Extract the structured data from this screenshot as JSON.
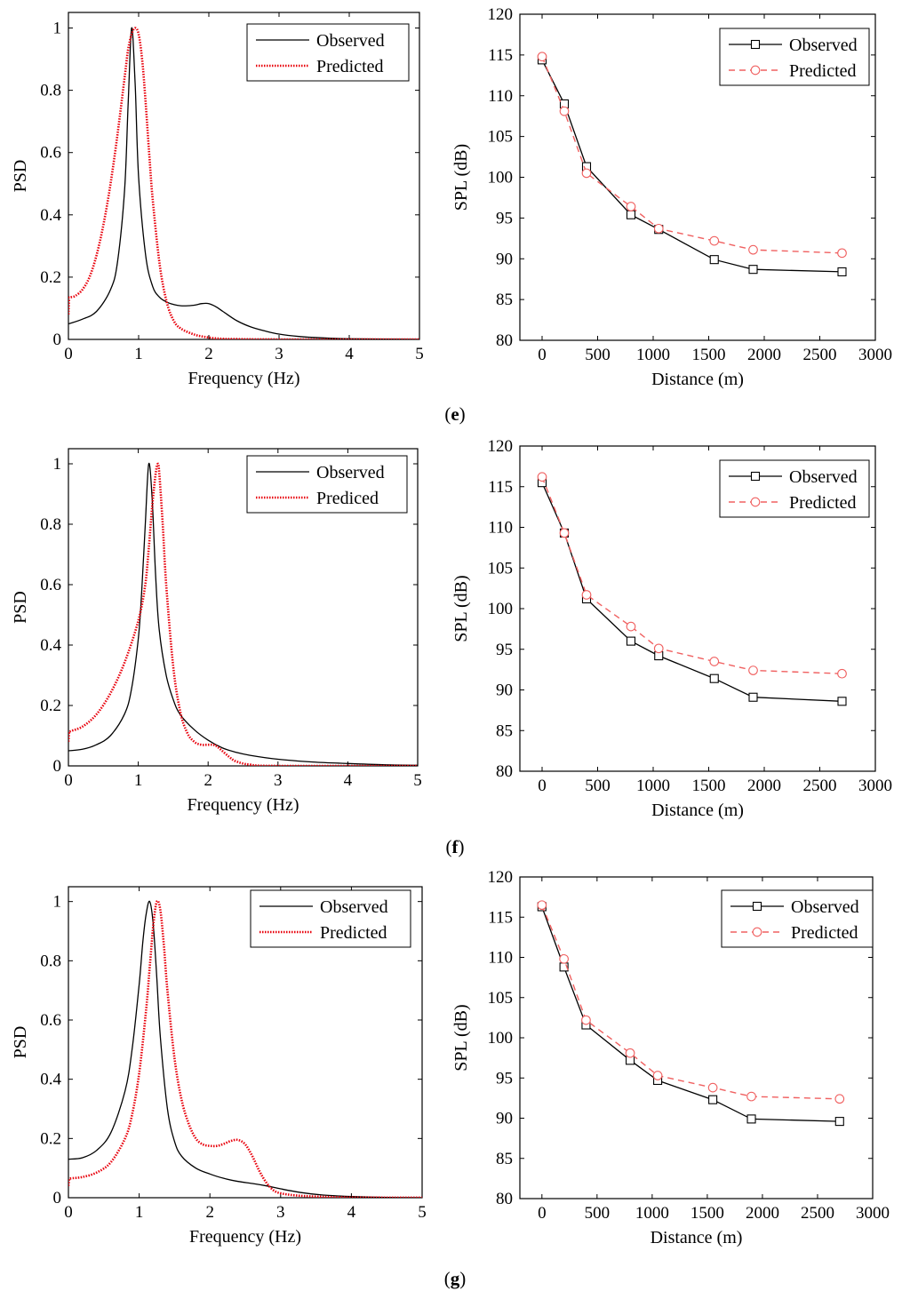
{
  "panel_labels": [
    "(e)",
    "(f)",
    "(g)"
  ],
  "chart_data": [
    {
      "panel": "(e)",
      "type": "line",
      "xlabel": "Frequency (Hz)",
      "ylabel": "PSD",
      "xlim": [
        0,
        5
      ],
      "ylim": [
        0,
        1.05
      ],
      "xticks": [
        0,
        1,
        2,
        3,
        4,
        5
      ],
      "yticks": [
        0,
        0.2,
        0.4,
        0.6,
        0.8,
        1
      ],
      "legend_position": "top-right",
      "grid": false,
      "series": [
        {
          "name": "Observed",
          "color": "#000000",
          "style": "solid",
          "x": [
            0,
            0.2,
            0.4,
            0.6,
            0.7,
            0.8,
            0.85,
            0.9,
            0.95,
            1.0,
            1.1,
            1.2,
            1.3,
            1.4,
            1.5,
            1.6,
            1.7,
            1.8,
            1.9,
            2.0,
            2.1,
            2.2,
            2.4,
            2.6,
            2.8,
            3.0,
            3.3,
            3.6,
            4.0,
            4.5,
            5.0
          ],
          "y": [
            0.05,
            0.065,
            0.09,
            0.16,
            0.25,
            0.48,
            0.75,
            1.0,
            0.82,
            0.52,
            0.27,
            0.17,
            0.135,
            0.12,
            0.112,
            0.108,
            0.108,
            0.11,
            0.115,
            0.115,
            0.105,
            0.09,
            0.06,
            0.04,
            0.027,
            0.017,
            0.009,
            0.005,
            0.002,
            0.001,
            0.0
          ]
        },
        {
          "name": "Predicted",
          "color": "#e8000b",
          "style": "dotted",
          "x": [
            0,
            0.01,
            0.03,
            0.1,
            0.2,
            0.3,
            0.4,
            0.5,
            0.6,
            0.7,
            0.8,
            0.85,
            0.9,
            0.95,
            1.0,
            1.05,
            1.1,
            1.15,
            1.2,
            1.3,
            1.4,
            1.5,
            1.6,
            1.8,
            2.0,
            2.2,
            2.4,
            3.0,
            5.0
          ],
          "y": [
            0.08,
            0.13,
            0.135,
            0.14,
            0.16,
            0.2,
            0.27,
            0.37,
            0.5,
            0.66,
            0.84,
            0.93,
            0.98,
            1.0,
            0.98,
            0.9,
            0.76,
            0.6,
            0.45,
            0.24,
            0.12,
            0.06,
            0.035,
            0.015,
            0.006,
            0.002,
            0.001,
            0.0,
            0.0
          ]
        }
      ]
    },
    {
      "panel": "(e)",
      "type": "line",
      "xlabel": "Distance (m)",
      "ylabel": "SPL (dB)",
      "xlim": [
        -200,
        3000
      ],
      "ylim": [
        80,
        120
      ],
      "xticks": [
        0,
        500,
        1000,
        1500,
        2000,
        2500,
        3000
      ],
      "yticks": [
        80,
        85,
        90,
        95,
        100,
        105,
        110,
        115,
        120
      ],
      "legend_position": "top-right",
      "grid": false,
      "series": [
        {
          "name": "Observed",
          "color": "#000000",
          "style": "solid",
          "marker": "square",
          "x": [
            0,
            200,
            400,
            800,
            1050,
            1550,
            1900,
            2700
          ],
          "y": [
            114.4,
            109.0,
            101.3,
            95.4,
            93.6,
            89.9,
            88.7,
            88.4
          ]
        },
        {
          "name": "Predicted",
          "color": "#f06060",
          "style": "dashed",
          "marker": "circle",
          "x": [
            0,
            200,
            400,
            800,
            1050,
            1550,
            1900,
            2700
          ],
          "y": [
            114.8,
            108.1,
            100.5,
            96.4,
            93.7,
            92.2,
            91.1,
            90.7
          ]
        }
      ]
    },
    {
      "panel": "(f)",
      "type": "line",
      "xlabel": "Frequency (Hz)",
      "ylabel": "PSD",
      "xlim": [
        0,
        5
      ],
      "ylim": [
        0,
        1.05
      ],
      "xticks": [
        0,
        1,
        2,
        3,
        4,
        5
      ],
      "yticks": [
        0,
        0.2,
        0.4,
        0.6,
        0.8,
        1
      ],
      "legend_position": "top-right",
      "grid": false,
      "series": [
        {
          "name": "Observed",
          "color": "#000000",
          "style": "solid",
          "x": [
            0,
            0.2,
            0.4,
            0.6,
            0.8,
            0.9,
            1.0,
            1.05,
            1.1,
            1.15,
            1.2,
            1.25,
            1.3,
            1.4,
            1.5,
            1.6,
            1.8,
            2.0,
            2.2,
            2.4,
            2.6,
            3.0,
            3.5,
            4.0,
            4.5,
            5.0
          ],
          "y": [
            0.05,
            0.055,
            0.07,
            0.1,
            0.17,
            0.25,
            0.42,
            0.58,
            0.8,
            1.0,
            0.88,
            0.62,
            0.45,
            0.3,
            0.22,
            0.17,
            0.12,
            0.085,
            0.06,
            0.045,
            0.035,
            0.022,
            0.013,
            0.008,
            0.004,
            0.002
          ]
        },
        {
          "name": "Prediced",
          "color": "#e8000b",
          "style": "dotted",
          "x": [
            0,
            0.01,
            0.03,
            0.2,
            0.4,
            0.6,
            0.8,
            1.0,
            1.1,
            1.15,
            1.2,
            1.25,
            1.28,
            1.3,
            1.35,
            1.4,
            1.5,
            1.6,
            1.7,
            1.8,
            1.9,
            2.0,
            2.1,
            2.2,
            2.3,
            2.4,
            2.6,
            3.0,
            5.0
          ],
          "y": [
            0.08,
            0.11,
            0.115,
            0.13,
            0.17,
            0.24,
            0.34,
            0.48,
            0.6,
            0.72,
            0.86,
            0.97,
            1.0,
            0.97,
            0.8,
            0.6,
            0.33,
            0.18,
            0.11,
            0.08,
            0.07,
            0.07,
            0.068,
            0.05,
            0.03,
            0.015,
            0.004,
            0.0,
            0.0
          ]
        }
      ]
    },
    {
      "panel": "(f)",
      "type": "line",
      "xlabel": "Distance (m)",
      "ylabel": "SPL (dB)",
      "xlim": [
        -200,
        3000
      ],
      "ylim": [
        80,
        120
      ],
      "xticks": [
        0,
        500,
        1000,
        1500,
        2000,
        2500,
        3000
      ],
      "yticks": [
        80,
        85,
        90,
        95,
        100,
        105,
        110,
        115,
        120
      ],
      "legend_position": "top-right",
      "grid": false,
      "series": [
        {
          "name": "Observed",
          "color": "#000000",
          "style": "solid",
          "marker": "square",
          "x": [
            0,
            200,
            400,
            800,
            1050,
            1550,
            1900,
            2700
          ],
          "y": [
            115.5,
            109.3,
            101.2,
            96.0,
            94.2,
            91.4,
            89.1,
            88.6
          ]
        },
        {
          "name": "Predicted",
          "color": "#f06060",
          "style": "dashed",
          "marker": "circle",
          "x": [
            0,
            200,
            400,
            800,
            1050,
            1550,
            1900,
            2700
          ],
          "y": [
            116.2,
            109.3,
            101.7,
            97.8,
            95.1,
            93.5,
            92.4,
            92.0
          ]
        }
      ]
    },
    {
      "panel": "(g)",
      "type": "line",
      "xlabel": "Frequency (Hz)",
      "ylabel": "PSD",
      "xlim": [
        0,
        5
      ],
      "ylim": [
        0,
        1.05
      ],
      "xticks": [
        0,
        1,
        2,
        3,
        4,
        5
      ],
      "yticks": [
        0,
        0.2,
        0.4,
        0.6,
        0.8,
        1
      ],
      "legend_position": "top-right",
      "grid": false,
      "series": [
        {
          "name": "Observed",
          "color": "#000000",
          "style": "solid",
          "x": [
            0,
            0.2,
            0.4,
            0.6,
            0.8,
            0.9,
            1.0,
            1.05,
            1.1,
            1.15,
            1.2,
            1.25,
            1.3,
            1.4,
            1.5,
            1.6,
            1.8,
            2.0,
            2.2,
            2.4,
            2.6,
            2.8,
            3.0,
            3.3,
            3.6,
            4.0,
            4.5,
            5.0
          ],
          "y": [
            0.13,
            0.135,
            0.16,
            0.22,
            0.36,
            0.5,
            0.72,
            0.86,
            0.96,
            1.0,
            0.92,
            0.74,
            0.54,
            0.3,
            0.19,
            0.14,
            0.1,
            0.08,
            0.065,
            0.055,
            0.048,
            0.04,
            0.03,
            0.017,
            0.009,
            0.004,
            0.001,
            0.0
          ]
        },
        {
          "name": "Predicted",
          "color": "#e8000b",
          "style": "dotted",
          "x": [
            0,
            0.01,
            0.03,
            0.2,
            0.4,
            0.6,
            0.8,
            0.9,
            1.0,
            1.1,
            1.15,
            1.2,
            1.25,
            1.3,
            1.35,
            1.4,
            1.5,
            1.6,
            1.7,
            1.8,
            1.9,
            2.0,
            2.1,
            2.2,
            2.3,
            2.4,
            2.5,
            2.6,
            2.7,
            2.8,
            2.9,
            3.0,
            3.2,
            3.5,
            4.0,
            5.0
          ],
          "y": [
            0.04,
            0.06,
            0.065,
            0.07,
            0.085,
            0.12,
            0.2,
            0.28,
            0.42,
            0.64,
            0.78,
            0.92,
            1.0,
            0.97,
            0.85,
            0.7,
            0.47,
            0.33,
            0.25,
            0.2,
            0.18,
            0.175,
            0.175,
            0.182,
            0.192,
            0.195,
            0.18,
            0.14,
            0.09,
            0.05,
            0.025,
            0.015,
            0.008,
            0.004,
            0.001,
            0.0
          ]
        }
      ]
    },
    {
      "panel": "(g)",
      "type": "line",
      "xlabel": "Distance (m)",
      "ylabel": "SPL (dB)",
      "xlim": [
        -200,
        3000
      ],
      "ylim": [
        80,
        120
      ],
      "xticks": [
        0,
        500,
        1000,
        1500,
        2000,
        2500,
        3000
      ],
      "yticks": [
        80,
        85,
        90,
        95,
        100,
        105,
        110,
        115,
        120
      ],
      "legend_position": "top-right",
      "grid": false,
      "series": [
        {
          "name": "Observed",
          "color": "#000000",
          "style": "solid",
          "marker": "square",
          "x": [
            0,
            200,
            400,
            800,
            1050,
            1550,
            1900,
            2700
          ],
          "y": [
            116.3,
            108.8,
            101.6,
            97.2,
            94.7,
            92.3,
            89.9,
            89.6
          ]
        },
        {
          "name": "Predicted",
          "color": "#f06060",
          "style": "dashed",
          "marker": "circle",
          "x": [
            0,
            200,
            400,
            800,
            1050,
            1550,
            1900,
            2700
          ],
          "y": [
            116.5,
            109.8,
            102.2,
            98.1,
            95.3,
            93.8,
            92.7,
            92.4
          ]
        }
      ]
    }
  ]
}
